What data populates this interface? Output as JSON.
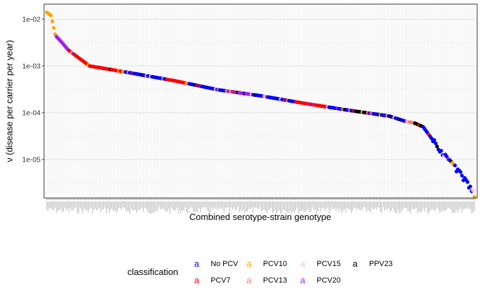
{
  "chart_data": {
    "type": "scatter",
    "title": "",
    "xlabel": "Combined serotype-strain genotype",
    "ylabel": "ν (disease per carrier per year)",
    "y_scale": "log10",
    "ylim": [
      1.5e-06,
      0.021
    ],
    "y_ticks": [
      {
        "value": 0.01,
        "label": "1e-02"
      },
      {
        "value": 0.001,
        "label": "1e-03"
      },
      {
        "value": 0.0001,
        "label": "1e-04"
      },
      {
        "value": 1e-05,
        "label": "1e-05"
      }
    ],
    "x_type": "ranked categorical (labels illegible, rotated 90°)",
    "grid": true,
    "legend": {
      "title": "classification",
      "position": "bottom",
      "entries": [
        {
          "name": "No PCV",
          "color": "#0000FF"
        },
        {
          "name": "PCV7",
          "color": "#FF0000"
        },
        {
          "name": "PCV10",
          "color": "#FFA500"
        },
        {
          "name": "PCV13",
          "color": "#FA8072"
        },
        {
          "name": "PCV15",
          "color": "#FFC0CB"
        },
        {
          "name": "PCV20",
          "color": "#A020F0"
        },
        {
          "name": "PPV23",
          "color": "#000000"
        }
      ]
    },
    "n_points": 310,
    "profile_rank_fraction": [
      0,
      0.01,
      0.02,
      0.035,
      0.05,
      0.07,
      0.1,
      0.2,
      0.3,
      0.4,
      0.5,
      0.6,
      0.7,
      0.8,
      0.84,
      0.86,
      0.88,
      0.9,
      0.93,
      0.96,
      0.985,
      1.0
    ],
    "profile_value": [
      0.014,
      0.012,
      0.0045,
      0.0032,
      0.0022,
      0.0016,
      0.001,
      0.0007,
      0.00048,
      0.00031,
      0.00023,
      0.00016,
      0.000115,
      8.5e-05,
      6.5e-05,
      6e-05,
      5e-05,
      2.8e-05,
      1.2e-05,
      6e-06,
      3e-06,
      1.7e-06
    ],
    "class_segments": [
      {
        "from": 0.0,
        "to": 0.02,
        "class": "PCV10"
      },
      {
        "from": 0.02,
        "to": 0.05,
        "class": "PCV20"
      },
      {
        "from": 0.05,
        "to": 0.18,
        "class": "PCV7"
      },
      {
        "from": 0.18,
        "to": 0.28,
        "class": "No PCV"
      },
      {
        "from": 0.28,
        "to": 0.33,
        "class": "PCV7"
      },
      {
        "from": 0.33,
        "to": 0.42,
        "class": "No PCV"
      },
      {
        "from": 0.42,
        "to": 0.48,
        "class": "PCV20"
      },
      {
        "from": 0.48,
        "to": 0.58,
        "class": "No PCV"
      },
      {
        "from": 0.58,
        "to": 0.66,
        "class": "PCV7"
      },
      {
        "from": 0.66,
        "to": 0.72,
        "class": "No PCV"
      },
      {
        "from": 0.72,
        "to": 0.75,
        "class": "PPV23"
      },
      {
        "from": 0.75,
        "to": 0.84,
        "class": "No PCV"
      },
      {
        "from": 0.84,
        "to": 0.86,
        "class": "PCV13"
      },
      {
        "from": 0.86,
        "to": 0.88,
        "class": "PPV23"
      },
      {
        "from": 0.88,
        "to": 1.0,
        "class": "No PCV"
      }
    ],
    "mixing_palette": [
      "PCV7",
      "PCV20",
      "PCV13",
      "PPV23",
      "PCV10",
      "PCV15"
    ],
    "panel_background": "#FFFFFF",
    "grid_color": "#EBEBEB",
    "border_color": "#333333"
  }
}
